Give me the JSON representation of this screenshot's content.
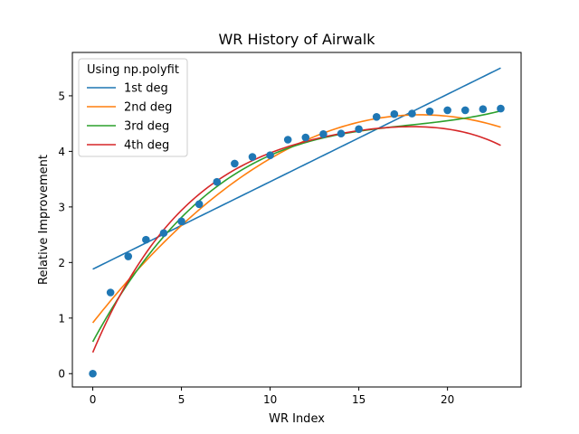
{
  "chart_data": {
    "type": "scatter",
    "title": "WR History of Airwalk",
    "xlabel": "WR Index",
    "ylabel": "Relative Improvement",
    "xlim": [
      -1.15,
      24.15
    ],
    "ylim": [
      -0.24,
      5.78
    ],
    "xticks": [
      0,
      5,
      10,
      15,
      20
    ],
    "yticks": [
      0,
      1,
      2,
      3,
      4,
      5
    ],
    "grid": false,
    "legend": {
      "title": "Using np.polyfit",
      "placement": "top-left"
    },
    "points": {
      "color": "#1f77b4",
      "x": [
        0,
        1,
        2,
        3,
        4,
        5,
        6,
        7,
        8,
        9,
        10,
        11,
        12,
        13,
        14,
        15,
        16,
        17,
        18,
        19,
        20,
        21,
        22,
        23
      ],
      "y": [
        0.0,
        1.46,
        2.11,
        2.41,
        2.53,
        2.74,
        3.05,
        3.45,
        3.78,
        3.9,
        3.93,
        4.21,
        4.25,
        4.31,
        4.32,
        4.4,
        4.62,
        4.67,
        4.68,
        4.72,
        4.74,
        4.74,
        4.76,
        4.77
      ]
    },
    "series": [
      {
        "name": "1st deg",
        "color": "#1f77b4",
        "coefficients": [
          1.88,
          0.1574
        ]
      },
      {
        "name": "2nd deg",
        "color": "#ff7f0e",
        "coefficients": [
          0.915,
          0.4049,
          -0.01095
        ]
      },
      {
        "name": "3rd deg",
        "color": "#2ca02c",
        "coefficients": [
          0.573,
          0.5887,
          -0.03115,
          0.000583
        ]
      },
      {
        "name": "4th deg",
        "color": "#d62728",
        "coefficients": [
          0.3813,
          0.7556,
          -0.06013,
          0.002472,
          -4.26e-05
        ]
      }
    ]
  }
}
